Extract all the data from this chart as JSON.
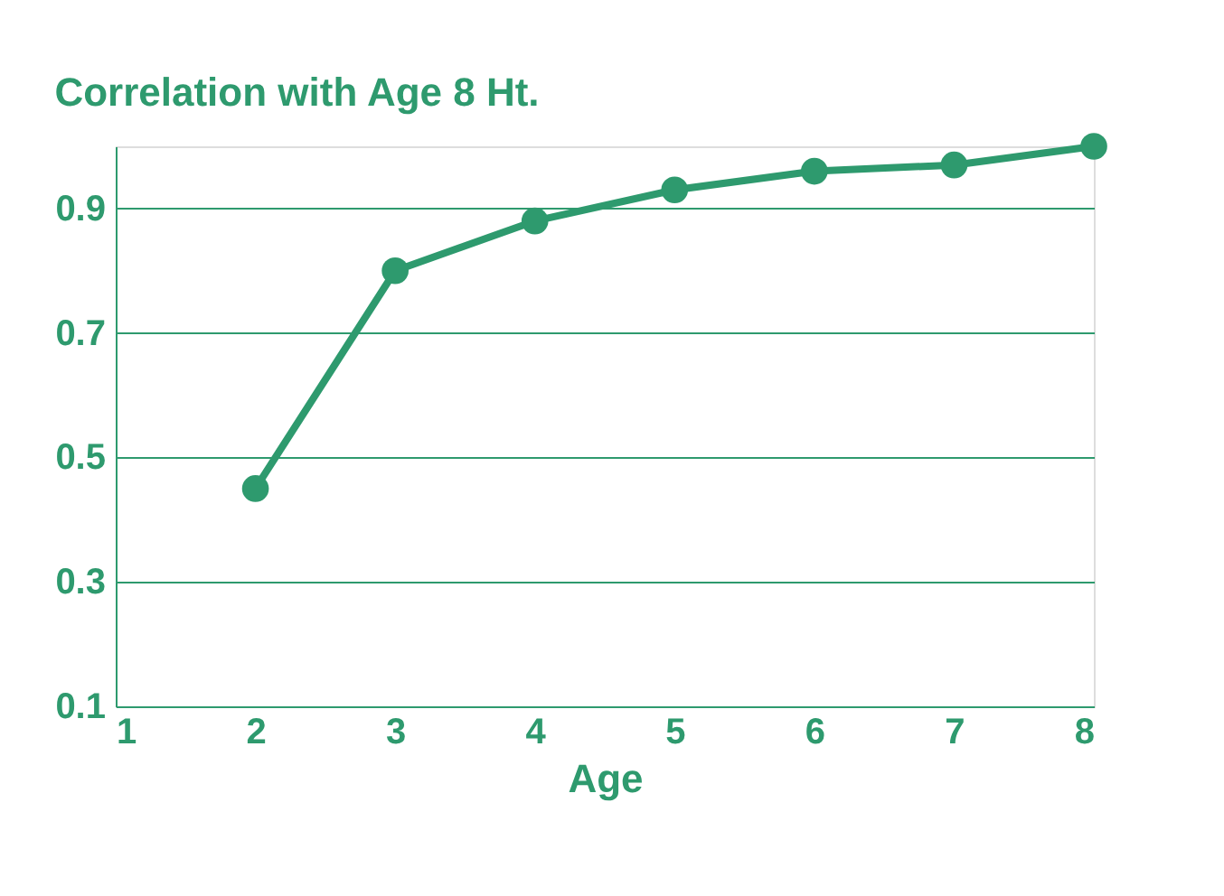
{
  "chart_data": {
    "type": "line",
    "title": "Correlation with Age 8 Ht.",
    "xlabel": "Age",
    "x": [
      2,
      3,
      4,
      5,
      6,
      7,
      8
    ],
    "series": [
      {
        "color": "#2e9a6e",
        "values": [
          0.45,
          0.8,
          0.88,
          0.93,
          0.96,
          0.97,
          1.0
        ]
      }
    ],
    "xlim": [
      1,
      8
    ],
    "xticks": [
      1,
      2,
      3,
      4,
      5,
      6,
      7,
      8
    ],
    "ylim": [
      0.1,
      1.0
    ],
    "yticks": [
      0.1,
      0.3,
      0.5,
      0.7,
      0.9
    ],
    "grid": "y",
    "marker": "circle",
    "line_style": "solid"
  }
}
